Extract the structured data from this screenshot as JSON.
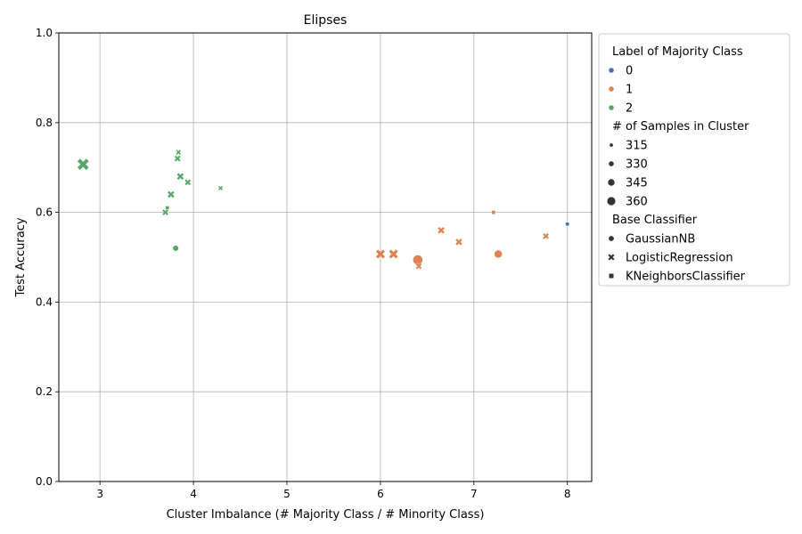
{
  "chart_data": {
    "type": "scatter",
    "title": "Elipses",
    "xlabel": "Cluster Imbalance (# Majority Class / # Minority Class)",
    "ylabel": "Test Accuracy",
    "xlim": [
      2.56,
      8.26
    ],
    "ylim": [
      0.0,
      1.0
    ],
    "xticks": [
      3,
      4,
      5,
      6,
      7,
      8
    ],
    "yticks": [
      0.0,
      0.2,
      0.4,
      0.6,
      0.8,
      1.0
    ],
    "grid": true,
    "legend_position": "outside-right-top",
    "colors": {
      "0": "#4c72b0",
      "1": "#dd8452",
      "2": "#55a868"
    },
    "legend": {
      "hue_title": "Label of Majority Class",
      "hue_entries": [
        "0",
        "1",
        "2"
      ],
      "size_title": "# of Samples in Cluster",
      "size_entries": [
        "315",
        "330",
        "345",
        "360"
      ],
      "style_title": "Base Classifier",
      "style_entries": [
        "GaussianNB",
        "LogisticRegression",
        "KNeighborsClassifier"
      ]
    },
    "points": [
      {
        "x": 8.0,
        "y": 0.574,
        "label": "0",
        "classifier": "GaussianNB",
        "samples": 315
      },
      {
        "x": 6.4,
        "y": 0.494,
        "label": "1",
        "classifier": "GaussianNB",
        "samples": 360
      },
      {
        "x": 7.26,
        "y": 0.507,
        "label": "1",
        "classifier": "GaussianNB",
        "samples": 345
      },
      {
        "x": 3.81,
        "y": 0.52,
        "label": "2",
        "classifier": "GaussianNB",
        "samples": 330
      },
      {
        "x": 6.0,
        "y": 0.507,
        "label": "1",
        "classifier": "LogisticRegression",
        "samples": 345
      },
      {
        "x": 6.14,
        "y": 0.507,
        "label": "1",
        "classifier": "LogisticRegression",
        "samples": 345
      },
      {
        "x": 6.41,
        "y": 0.48,
        "label": "1",
        "classifier": "LogisticRegression",
        "samples": 325
      },
      {
        "x": 6.65,
        "y": 0.56,
        "label": "1",
        "classifier": "LogisticRegression",
        "samples": 330
      },
      {
        "x": 6.84,
        "y": 0.534,
        "label": "1",
        "classifier": "LogisticRegression",
        "samples": 330
      },
      {
        "x": 7.77,
        "y": 0.547,
        "label": "1",
        "classifier": "LogisticRegression",
        "samples": 325
      },
      {
        "x": 2.82,
        "y": 0.707,
        "label": "2",
        "classifier": "LogisticRegression",
        "samples": 360
      },
      {
        "x": 3.84,
        "y": 0.734,
        "label": "2",
        "classifier": "LogisticRegression",
        "samples": 318
      },
      {
        "x": 3.83,
        "y": 0.72,
        "label": "2",
        "classifier": "LogisticRegression",
        "samples": 325
      },
      {
        "x": 3.86,
        "y": 0.68,
        "label": "2",
        "classifier": "LogisticRegression",
        "samples": 330
      },
      {
        "x": 3.94,
        "y": 0.667,
        "label": "2",
        "classifier": "LogisticRegression",
        "samples": 325
      },
      {
        "x": 3.76,
        "y": 0.64,
        "label": "2",
        "classifier": "LogisticRegression",
        "samples": 330
      },
      {
        "x": 3.7,
        "y": 0.6,
        "label": "2",
        "classifier": "LogisticRegression",
        "samples": 325
      },
      {
        "x": 4.29,
        "y": 0.654,
        "label": "2",
        "classifier": "LogisticRegression",
        "samples": 315
      },
      {
        "x": 7.21,
        "y": 0.6,
        "label": "1",
        "classifier": "KNeighborsClassifier",
        "samples": 318
      },
      {
        "x": 3.72,
        "y": 0.61,
        "label": "2",
        "classifier": "KNeighborsClassifier",
        "samples": 318
      }
    ]
  }
}
